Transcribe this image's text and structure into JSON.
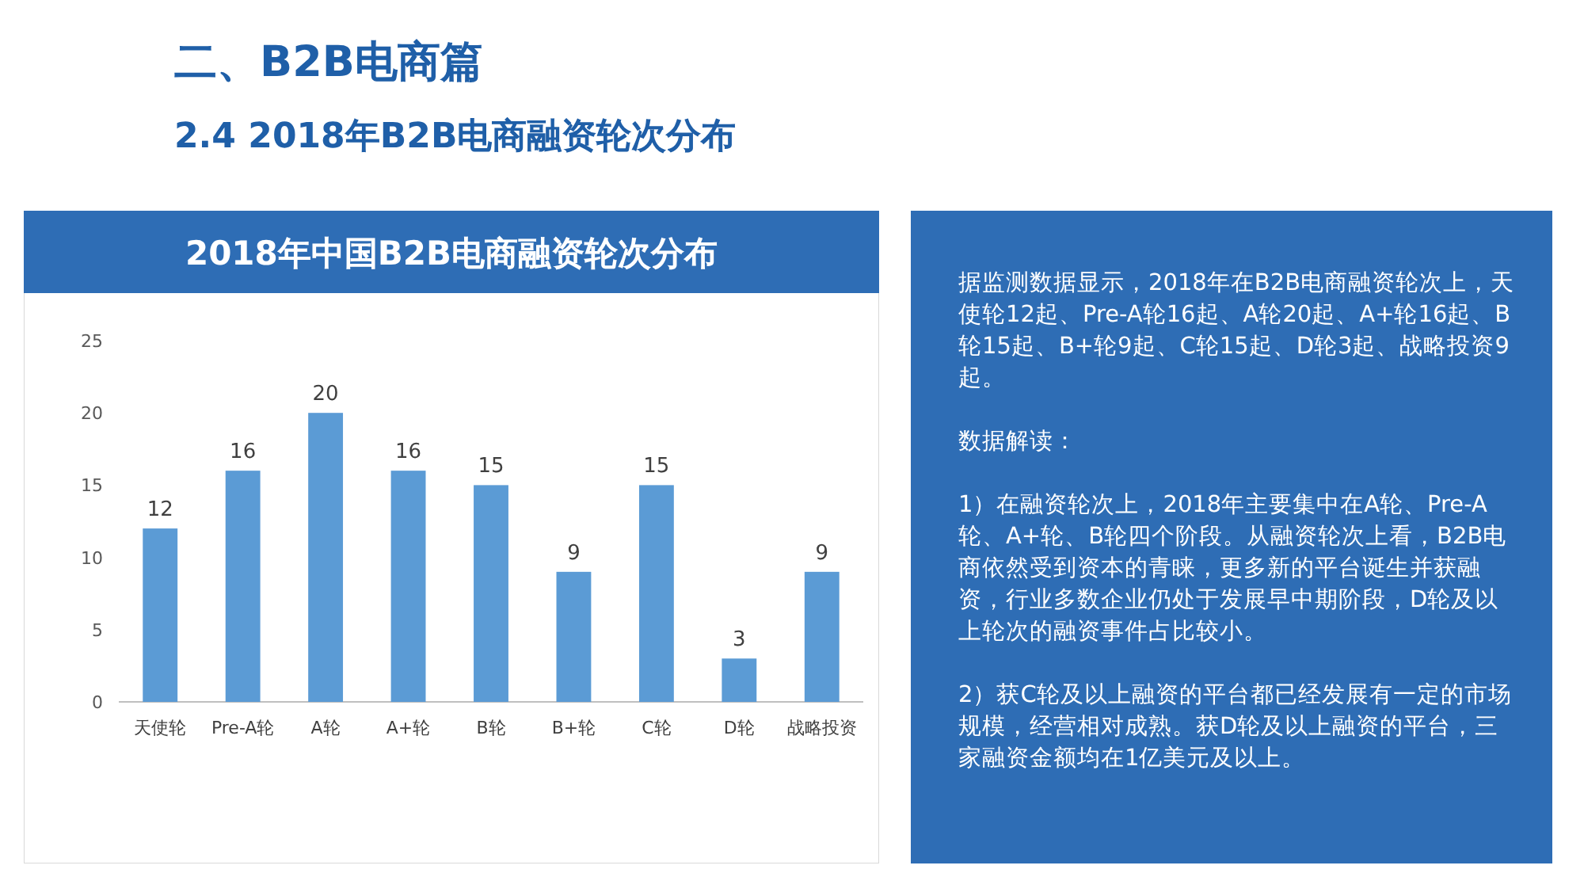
{
  "chart_data": [
    {
      "type": "other",
      "title": "二、B2B电商篇",
      "subtitle": "2.4 2018年B2B电商融资轮次分布"
    },
    {
      "type": "bar",
      "title": "2018年中国B2B电商融资轮次分布",
      "categories": [
        "天使轮",
        "Pre-A轮",
        "A轮",
        "A+轮",
        "B轮",
        "B+轮",
        "C轮",
        "D轮",
        "战略投资"
      ],
      "values": [
        12,
        16,
        20,
        16,
        15,
        9,
        15,
        3,
        9
      ],
      "color": "#5b9bd5",
      "ylim": [
        0,
        25
      ],
      "yticks": [
        0,
        5,
        10,
        15,
        20,
        25
      ],
      "data_labels": true
    },
    {
      "type": "other",
      "annotations": [
        "据监测数据显示，2018年在B2B电商融资轮次上，天使轮12起、Pre-A轮16起、A轮20起、A+轮16起、B轮15起、B+轮9起、C轮15起、D轮3起、战略投资9起。",
        "数据解读：",
        "1）在融资轮次上，2018年主要集中在A轮、Pre-A轮、A+轮、B轮四个阶段。从融资轮次上看，B2B电商依然受到资本的青睐，更多新的平台诞生并获融资，行业多数企业仍处于发展早中期阶段，D轮及以上轮次的融资事件占比较小。",
        "2）获C轮及以上融资的平台都已经发展有一定的市场规模，经营相对成熟。获D轮及以上融资的平台，三家融资金额均在1亿美元及以上。"
      ]
    }
  ]
}
